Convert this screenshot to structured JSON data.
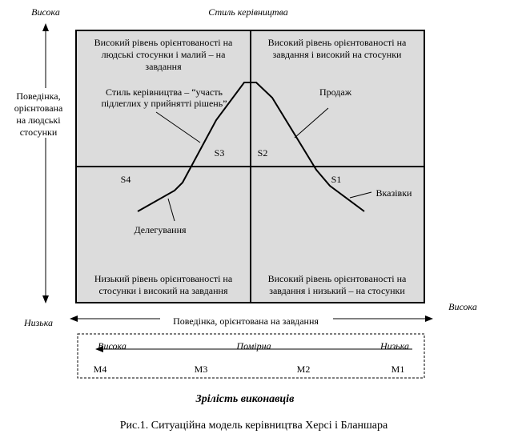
{
  "diagram": {
    "top_left_label": "Висока",
    "top_title": "Стиль керівництва",
    "y_axis_label": [
      "Поведінка,",
      "орієнтована",
      "на людські",
      "стосунки"
    ],
    "bottom_left_label": "Низька",
    "right_label": "Висока",
    "x_axis_label": "Поведінка, орієнтована на завдання",
    "quadrants": {
      "top_left": [
        "Високий рівень орієнтованості на",
        "людські стосунки і малий – на",
        "завдання"
      ],
      "top_right": [
        "Високий рівень орієнтованості на",
        "завдання і високий на стосунки"
      ],
      "bottom_left": [
        "Низький рівень орієнтованості на",
        "стосунки і високий на завдання"
      ],
      "bottom_right": [
        "Високий рівень орієнтованості на",
        "завдання і низький – на стосунки"
      ]
    },
    "annotations": {
      "participation": [
        "Стиль керівництва – “участь",
        "підлеглих у прийнятті рішень”"
      ],
      "selling": "Продаж",
      "telling": "Вказівки",
      "delegating": "Делегування"
    },
    "styles": {
      "s1": "S1",
      "s2": "S2",
      "s3": "S3",
      "s4": "S4"
    },
    "maturity": {
      "levels": [
        "Висока",
        "Помірна",
        "Низька"
      ],
      "stages": [
        "M4",
        "M3",
        "M2",
        "M1"
      ],
      "title": "Зрілість виконавців"
    },
    "caption": "Рис.1. Ситуаційна модель керівництва Херсі і Бланшара"
  }
}
